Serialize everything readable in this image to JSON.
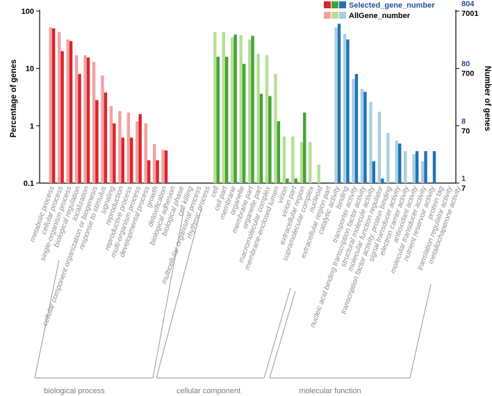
{
  "chart_data": {
    "type": "bar",
    "ylabel_left": "Percentage of genes",
    "ylabel_right": "Number of genes",
    "yscale": "log",
    "ylim": [
      0.1,
      100
    ],
    "left_ticks": [
      "100",
      "10",
      "1",
      "0.1"
    ],
    "right_ticks_selected": [
      "804",
      "80",
      "8",
      "1"
    ],
    "right_ticks_all": [
      "7001",
      "700",
      "70",
      "7"
    ],
    "legend": {
      "selected_label": "Selected_gene_number",
      "all_label": "AllGene_number"
    },
    "colors": {
      "biological process": {
        "all": "#f4a0a0",
        "selected": "#d7262e"
      },
      "cellular component": {
        "all": "#b5df95",
        "selected": "#45a335"
      },
      "molecular function": {
        "all": "#a9cde4",
        "selected": "#1f73b3"
      },
      "selected_text": "#1f4e9c",
      "all_text": "#000000"
    },
    "groups": [
      {
        "name": "biological process",
        "categories": [
          {
            "label": "metabolic process",
            "all": 52,
            "selected": 50
          },
          {
            "label": "cellular process",
            "all": 43,
            "selected": 20
          },
          {
            "label": "single-organism process",
            "all": 32,
            "selected": 30
          },
          {
            "label": "biological regulation",
            "all": 17,
            "selected": 8
          },
          {
            "label": "localization",
            "all": 17,
            "selected": 15.5
          },
          {
            "label": "cellular component organization or biogenesis",
            "all": 13,
            "selected": 2.8
          },
          {
            "label": "response to stimulus",
            "all": 7.5,
            "selected": 3.8
          },
          {
            "label": "signaling",
            "all": 2.2,
            "selected": 1.1
          },
          {
            "label": "reproduction",
            "all": 1.8,
            "selected": 0.62
          },
          {
            "label": "reproductive process",
            "all": 1.7,
            "selected": 0.62
          },
          {
            "label": "multi-organism process",
            "all": 1.2,
            "selected": 1.6
          },
          {
            "label": "developmental process",
            "all": 1.1,
            "selected": 0.25
          },
          {
            "label": "growth",
            "all": 0.48,
            "selected": 0.25
          },
          {
            "label": "detoxification",
            "all": 0.38,
            "selected": 0.37
          },
          {
            "label": "biological adhesion",
            "all": null,
            "selected": null
          },
          {
            "label": "biological phase",
            "all": null,
            "selected": null
          },
          {
            "label": "cell killing",
            "all": null,
            "selected": null
          },
          {
            "label": "multicellular organismal process",
            "all": null,
            "selected": null
          },
          {
            "label": "rhythmic process",
            "all": null,
            "selected": null
          }
        ]
      },
      {
        "name": "cellular component",
        "categories": [
          {
            "label": "cell",
            "all": 43,
            "selected": 16
          },
          {
            "label": "cell part",
            "all": 43,
            "selected": 16
          },
          {
            "label": "membrane",
            "all": 35,
            "selected": 39
          },
          {
            "label": "organelle",
            "all": 38,
            "selected": 12
          },
          {
            "label": "membrane part",
            "all": 32,
            "selected": 37
          },
          {
            "label": "organelle part",
            "all": 18,
            "selected": 3.6
          },
          {
            "label": "macromolecular complex",
            "all": 17,
            "selected": 3.3
          },
          {
            "label": "membrane-enclosed lumen",
            "all": 8,
            "selected": 1.2
          },
          {
            "label": "virion",
            "all": 0.65,
            "selected": 0.12
          },
          {
            "label": "virion part",
            "all": 0.65,
            "selected": 0.12
          },
          {
            "label": "extracellular region",
            "all": 0.52,
            "selected": 1.7
          },
          {
            "label": "supramolecular complex",
            "all": 0.52,
            "selected": null
          },
          {
            "label": "nucleoid",
            "all": 0.21,
            "selected": null
          },
          {
            "label": "extracellular region part",
            "all": null,
            "selected": null
          }
        ]
      },
      {
        "name": "molecular function",
        "categories": [
          {
            "label": "catalytic activity",
            "all": 52,
            "selected": 60
          },
          {
            "label": "binding",
            "all": 40,
            "selected": 32
          },
          {
            "label": "transporter activity",
            "all": 6.5,
            "selected": 8
          },
          {
            "label": "nucleic acid binding transcription factor activity",
            "all": 4.4,
            "selected": 3.9
          },
          {
            "label": "structural molecule activity",
            "all": 2.6,
            "selected": 0.24
          },
          {
            "label": "molecular function regulator",
            "all": 1.75,
            "selected": 0.12
          },
          {
            "label": "transcription factor activity, protein binding",
            "all": 0.75,
            "selected": null
          },
          {
            "label": "signal transducer activity",
            "all": 0.55,
            "selected": 0.49
          },
          {
            "label": "electron carrier activity",
            "all": 0.36,
            "selected": null
          },
          {
            "label": "antioxidant activity",
            "all": 0.32,
            "selected": 0.36
          },
          {
            "label": "molecular transducer activity",
            "all": 0.24,
            "selected": 0.36
          },
          {
            "label": "nutrient reservoir activity",
            "all": null,
            "selected": 0.36
          },
          {
            "label": "protein tag",
            "all": null,
            "selected": null
          },
          {
            "label": "translation regulator activity",
            "all": null,
            "selected": null
          },
          {
            "label": "metallochaperone activity",
            "all": null,
            "selected": null
          }
        ]
      }
    ]
  }
}
